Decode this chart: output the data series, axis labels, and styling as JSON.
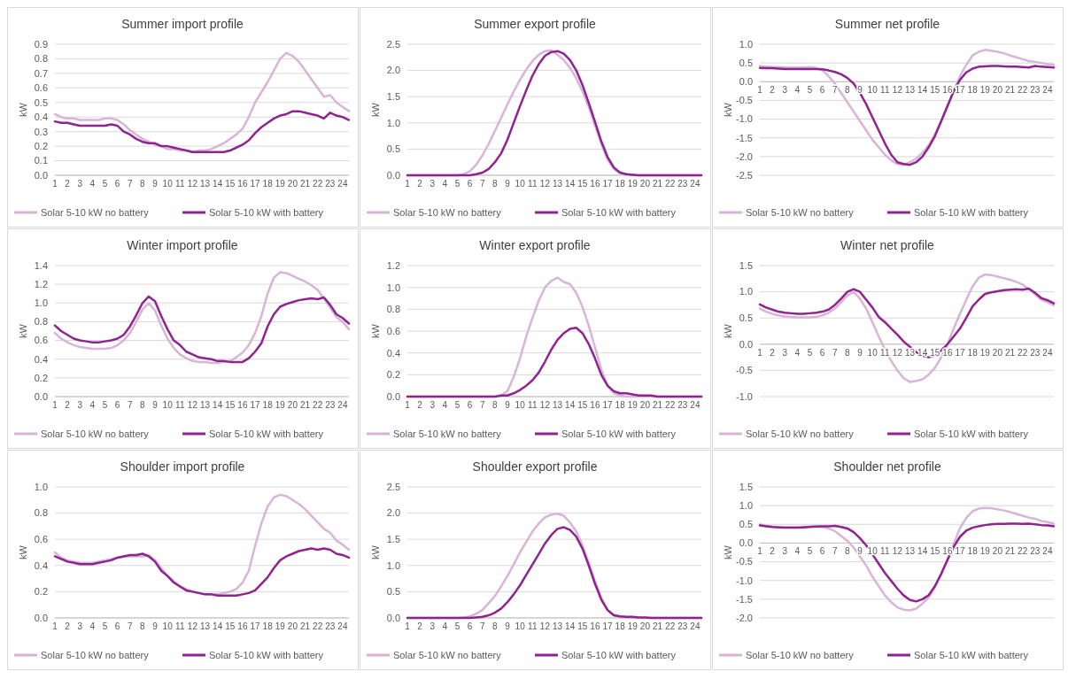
{
  "chart_data": [
    {
      "type": "line",
      "title": "Summer import profile",
      "ylabel": "kW",
      "grid": "y",
      "legend": "bottom",
      "x": [
        1,
        1.5,
        2,
        2.5,
        3,
        3.5,
        4,
        4.5,
        5,
        5.5,
        6,
        6.5,
        7,
        7.5,
        8,
        8.5,
        9,
        9.5,
        10,
        10.5,
        11,
        11.5,
        12,
        12.5,
        13,
        13.5,
        14,
        14.5,
        15,
        15.5,
        16,
        16.5,
        17,
        17.5,
        18,
        18.5,
        19,
        19.5,
        20,
        20.5,
        21,
        21.5,
        22,
        22.5,
        23,
        23.5,
        24,
        24.5
      ],
      "xlim": [
        1,
        24.5
      ],
      "xticks": [
        1,
        2,
        3,
        4,
        5,
        6,
        7,
        8,
        9,
        10,
        11,
        12,
        13,
        14,
        15,
        16,
        17,
        18,
        19,
        20,
        21,
        22,
        23,
        24
      ],
      "ylim": [
        0,
        0.9
      ],
      "yticks": [
        {
          "value": 0,
          "label": "0.0"
        },
        {
          "value": 0.1,
          "label": "0.1"
        },
        {
          "value": 0.2,
          "label": "0.2"
        },
        {
          "value": 0.3,
          "label": "0.3"
        },
        {
          "value": 0.4,
          "label": "0.4"
        },
        {
          "value": 0.5,
          "label": "0.5"
        },
        {
          "value": 0.6,
          "label": "0.6"
        },
        {
          "value": 0.7,
          "label": "0.7"
        },
        {
          "value": 0.8,
          "label": "0.8"
        },
        {
          "value": 0.9,
          "label": "0.9"
        }
      ],
      "series": [
        {
          "name": "Solar 5-10 kW no battery",
          "color": "#d8b4d9",
          "values": [
            0.42,
            0.4,
            0.39,
            0.39,
            0.38,
            0.38,
            0.38,
            0.38,
            0.39,
            0.39,
            0.38,
            0.35,
            0.31,
            0.28,
            0.25,
            0.23,
            0.21,
            0.2,
            0.18,
            0.18,
            0.17,
            0.17,
            0.16,
            0.17,
            0.17,
            0.18,
            0.2,
            0.22,
            0.25,
            0.28,
            0.32,
            0.4,
            0.5,
            0.57,
            0.64,
            0.72,
            0.8,
            0.84,
            0.82,
            0.78,
            0.72,
            0.66,
            0.6,
            0.54,
            0.55,
            0.5,
            0.47,
            0.44
          ]
        },
        {
          "name": "Solar 5-10 kW with battery",
          "color": "#8f2490",
          "values": [
            0.37,
            0.36,
            0.36,
            0.35,
            0.34,
            0.34,
            0.34,
            0.34,
            0.34,
            0.35,
            0.34,
            0.3,
            0.28,
            0.25,
            0.23,
            0.22,
            0.22,
            0.2,
            0.2,
            0.19,
            0.18,
            0.17,
            0.16,
            0.16,
            0.16,
            0.16,
            0.16,
            0.16,
            0.17,
            0.19,
            0.21,
            0.24,
            0.29,
            0.33,
            0.36,
            0.39,
            0.41,
            0.42,
            0.44,
            0.44,
            0.43,
            0.42,
            0.41,
            0.39,
            0.43,
            0.41,
            0.4,
            0.38
          ]
        }
      ]
    },
    {
      "type": "line",
      "title": "Summer export profile",
      "ylabel": "kW",
      "grid": "y",
      "legend": "bottom",
      "x": [
        1,
        1.5,
        2,
        2.5,
        3,
        3.5,
        4,
        4.5,
        5,
        5.5,
        6,
        6.5,
        7,
        7.5,
        8,
        8.5,
        9,
        9.5,
        10,
        10.5,
        11,
        11.5,
        12,
        12.5,
        13,
        13.5,
        14,
        14.5,
        15,
        15.5,
        16,
        16.5,
        17,
        17.5,
        18,
        18.5,
        19,
        19.5,
        20,
        20.5,
        21,
        21.5,
        22,
        22.5,
        23,
        23.5,
        24,
        24.5
      ],
      "xlim": [
        1,
        24.5
      ],
      "xticks": [
        1,
        2,
        3,
        4,
        5,
        6,
        7,
        8,
        9,
        10,
        11,
        12,
        13,
        14,
        15,
        16,
        17,
        18,
        19,
        20,
        21,
        22,
        23,
        24
      ],
      "ylim": [
        0,
        2.5
      ],
      "yticks": [
        {
          "value": 0,
          "label": "0.0"
        },
        {
          "value": 0.5,
          "label": "0.5"
        },
        {
          "value": 1,
          "label": "1.0"
        },
        {
          "value": 1.5,
          "label": "1.5"
        },
        {
          "value": 2,
          "label": "2.0"
        },
        {
          "value": 2.5,
          "label": "2.5"
        }
      ],
      "series": [
        {
          "name": "Solar 5-10 kW no battery",
          "color": "#d8b4d9",
          "values": [
            0,
            0,
            0,
            0,
            0,
            0,
            0,
            0,
            0,
            0.02,
            0.08,
            0.2,
            0.38,
            0.6,
            0.85,
            1.1,
            1.35,
            1.6,
            1.82,
            2.02,
            2.18,
            2.3,
            2.37,
            2.38,
            2.3,
            2.2,
            2.05,
            1.85,
            1.6,
            1.3,
            0.95,
            0.6,
            0.3,
            0.12,
            0.04,
            0.02,
            0.01,
            0,
            0,
            0,
            0,
            0,
            0,
            0,
            0,
            0,
            0,
            0
          ]
        },
        {
          "name": "Solar 5-10 kW with battery",
          "color": "#8f2490",
          "values": [
            0,
            0,
            0,
            0,
            0,
            0,
            0,
            0,
            0,
            0,
            0,
            0.02,
            0.05,
            0.12,
            0.25,
            0.42,
            0.68,
            1.0,
            1.32,
            1.62,
            1.9,
            2.12,
            2.28,
            2.35,
            2.37,
            2.32,
            2.2,
            2.0,
            1.72,
            1.38,
            1.02,
            0.65,
            0.35,
            0.15,
            0.05,
            0.02,
            0.01,
            0,
            0,
            0,
            0,
            0,
            0,
            0,
            0,
            0,
            0,
            0
          ]
        }
      ]
    },
    {
      "type": "line",
      "title": "Summer net profile",
      "ylabel": "kW",
      "grid": "y",
      "legend": "bottom",
      "x": [
        1,
        1.5,
        2,
        2.5,
        3,
        3.5,
        4,
        4.5,
        5,
        5.5,
        6,
        6.5,
        7,
        7.5,
        8,
        8.5,
        9,
        9.5,
        10,
        10.5,
        11,
        11.5,
        12,
        12.5,
        13,
        13.5,
        14,
        14.5,
        15,
        15.5,
        16,
        16.5,
        17,
        17.5,
        18,
        18.5,
        19,
        19.5,
        20,
        20.5,
        21,
        21.5,
        22,
        22.5,
        23,
        23.5,
        24,
        24.5
      ],
      "xlim": [
        1,
        24.5
      ],
      "xticks": [
        1,
        2,
        3,
        4,
        5,
        6,
        7,
        8,
        9,
        10,
        11,
        12,
        13,
        14,
        15,
        16,
        17,
        18,
        19,
        20,
        21,
        22,
        23,
        24
      ],
      "ylim": [
        -2.5,
        1
      ],
      "yticks": [
        {
          "value": -2.5,
          "label": "-2.5"
        },
        {
          "value": -2,
          "label": "-2.0"
        },
        {
          "value": -1.5,
          "label": "-1.5"
        },
        {
          "value": -1,
          "label": "-1.0"
        },
        {
          "value": -0.5,
          "label": "-0.5"
        },
        {
          "value": 0,
          "label": "0.0"
        },
        {
          "value": 0.5,
          "label": "0.5"
        },
        {
          "value": 1,
          "label": "1.0"
        }
      ],
      "series": [
        {
          "name": "Solar 5-10 kW no battery",
          "color": "#d8b4d9",
          "values": [
            0.42,
            0.4,
            0.39,
            0.39,
            0.38,
            0.38,
            0.38,
            0.38,
            0.39,
            0.37,
            0.3,
            0.15,
            -0.05,
            -0.3,
            -0.55,
            -0.8,
            -1.05,
            -1.3,
            -1.55,
            -1.75,
            -1.95,
            -2.1,
            -2.2,
            -2.22,
            -2.15,
            -2.05,
            -1.9,
            -1.7,
            -1.4,
            -1.05,
            -0.65,
            -0.25,
            0.15,
            0.45,
            0.7,
            0.8,
            0.85,
            0.83,
            0.8,
            0.76,
            0.7,
            0.65,
            0.6,
            0.55,
            0.53,
            0.5,
            0.47,
            0.45
          ]
        },
        {
          "name": "Solar 5-10 kW with battery",
          "color": "#8f2490",
          "values": [
            0.37,
            0.36,
            0.36,
            0.35,
            0.34,
            0.34,
            0.34,
            0.34,
            0.34,
            0.34,
            0.33,
            0.3,
            0.26,
            0.2,
            0.1,
            -0.05,
            -0.3,
            -0.6,
            -0.95,
            -1.3,
            -1.65,
            -1.95,
            -2.15,
            -2.2,
            -2.22,
            -2.15,
            -2,
            -1.75,
            -1.45,
            -1.05,
            -0.65,
            -0.25,
            0.05,
            0.25,
            0.35,
            0.4,
            0.41,
            0.42,
            0.42,
            0.41,
            0.4,
            0.4,
            0.39,
            0.38,
            0.42,
            0.4,
            0.39,
            0.38
          ]
        }
      ]
    },
    {
      "type": "line",
      "title": "Winter import profile",
      "ylabel": "kW",
      "grid": "y",
      "legend": "bottom",
      "x": [
        1,
        1.5,
        2,
        2.5,
        3,
        3.5,
        4,
        4.5,
        5,
        5.5,
        6,
        6.5,
        7,
        7.5,
        8,
        8.5,
        9,
        9.5,
        10,
        10.5,
        11,
        11.5,
        12,
        12.5,
        13,
        13.5,
        14,
        14.5,
        15,
        15.5,
        16,
        16.5,
        17,
        17.5,
        18,
        18.5,
        19,
        19.5,
        20,
        20.5,
        21,
        21.5,
        22,
        22.5,
        23,
        23.5,
        24,
        24.5
      ],
      "xlim": [
        1,
        24.5
      ],
      "xticks": [
        1,
        2,
        3,
        4,
        5,
        6,
        7,
        8,
        9,
        10,
        11,
        12,
        13,
        14,
        15,
        16,
        17,
        18,
        19,
        20,
        21,
        22,
        23,
        24
      ],
      "ylim": [
        0,
        1.4
      ],
      "yticks": [
        {
          "value": 0,
          "label": "0.0"
        },
        {
          "value": 0.2,
          "label": "0.2"
        },
        {
          "value": 0.4,
          "label": "0.4"
        },
        {
          "value": 0.6,
          "label": "0.6"
        },
        {
          "value": 0.8,
          "label": "0.8"
        },
        {
          "value": 1,
          "label": "1.0"
        },
        {
          "value": 1.2,
          "label": "1.2"
        },
        {
          "value": 1.4,
          "label": "1.4"
        }
      ],
      "series": [
        {
          "name": "Solar 5-10 kW no battery",
          "color": "#d8b4d9",
          "values": [
            0.68,
            0.62,
            0.58,
            0.55,
            0.53,
            0.52,
            0.51,
            0.51,
            0.51,
            0.52,
            0.55,
            0.6,
            0.68,
            0.8,
            0.93,
            1.0,
            0.92,
            0.76,
            0.62,
            0.52,
            0.45,
            0.41,
            0.38,
            0.37,
            0.37,
            0.36,
            0.36,
            0.37,
            0.38,
            0.42,
            0.47,
            0.55,
            0.68,
            0.86,
            1.1,
            1.27,
            1.33,
            1.32,
            1.29,
            1.26,
            1.23,
            1.19,
            1.14,
            1.05,
            0.95,
            0.85,
            0.8,
            0.72
          ]
        },
        {
          "name": "Solar 5-10 kW with battery",
          "color": "#8f2490",
          "values": [
            0.76,
            0.7,
            0.66,
            0.62,
            0.6,
            0.59,
            0.58,
            0.58,
            0.59,
            0.6,
            0.62,
            0.66,
            0.75,
            0.87,
            1.0,
            1.07,
            1.02,
            0.86,
            0.72,
            0.6,
            0.55,
            0.48,
            0.45,
            0.42,
            0.41,
            0.4,
            0.38,
            0.38,
            0.37,
            0.37,
            0.37,
            0.41,
            0.48,
            0.57,
            0.75,
            0.88,
            0.96,
            0.99,
            1.01,
            1.03,
            1.04,
            1.05,
            1.04,
            1.06,
            0.98,
            0.88,
            0.84,
            0.78
          ]
        }
      ]
    },
    {
      "type": "line",
      "title": "Winter export profile",
      "ylabel": "kW",
      "grid": "y",
      "legend": "bottom",
      "x": [
        1,
        1.5,
        2,
        2.5,
        3,
        3.5,
        4,
        4.5,
        5,
        5.5,
        6,
        6.5,
        7,
        7.5,
        8,
        8.5,
        9,
        9.5,
        10,
        10.5,
        11,
        11.5,
        12,
        12.5,
        13,
        13.5,
        14,
        14.5,
        15,
        15.5,
        16,
        16.5,
        17,
        17.5,
        18,
        18.5,
        19,
        19.5,
        20,
        20.5,
        21,
        21.5,
        22,
        22.5,
        23,
        23.5,
        24,
        24.5
      ],
      "xlim": [
        1,
        24.5
      ],
      "xticks": [
        1,
        2,
        3,
        4,
        5,
        6,
        7,
        8,
        9,
        10,
        11,
        12,
        13,
        14,
        15,
        16,
        17,
        18,
        19,
        20,
        21,
        22,
        23,
        24
      ],
      "ylim": [
        0,
        1.2
      ],
      "yticks": [
        {
          "value": 0,
          "label": "0.0"
        },
        {
          "value": 0.2,
          "label": "0.2"
        },
        {
          "value": 0.4,
          "label": "0.4"
        },
        {
          "value": 0.6,
          "label": "0.6"
        },
        {
          "value": 0.8,
          "label": "0.8"
        },
        {
          "value": 1,
          "label": "1.0"
        },
        {
          "value": 1.2,
          "label": "1.2"
        }
      ],
      "series": [
        {
          "name": "Solar 5-10 kW no battery",
          "color": "#d8b4d9",
          "values": [
            0,
            0,
            0,
            0,
            0,
            0,
            0,
            0,
            0,
            0,
            0,
            0,
            0,
            0,
            0,
            0.01,
            0.05,
            0.18,
            0.35,
            0.55,
            0.72,
            0.88,
            1.0,
            1.06,
            1.09,
            1.05,
            1.03,
            0.95,
            0.82,
            0.65,
            0.45,
            0.25,
            0.1,
            0.03,
            0.01,
            0,
            0,
            0,
            0,
            0,
            0,
            0,
            0,
            0,
            0,
            0,
            0,
            0
          ]
        },
        {
          "name": "Solar 5-10 kW with battery",
          "color": "#8f2490",
          "values": [
            0,
            0,
            0,
            0,
            0,
            0,
            0,
            0,
            0,
            0,
            0,
            0,
            0,
            0,
            0,
            0.01,
            0.01,
            0.03,
            0.06,
            0.1,
            0.15,
            0.22,
            0.32,
            0.43,
            0.52,
            0.58,
            0.62,
            0.63,
            0.58,
            0.48,
            0.35,
            0.2,
            0.1,
            0.05,
            0.03,
            0.03,
            0.02,
            0.01,
            0.01,
            0.01,
            0,
            0,
            0,
            0,
            0,
            0,
            0,
            0
          ]
        }
      ]
    },
    {
      "type": "line",
      "title": "Winter net profile",
      "ylabel": "kW",
      "grid": "y",
      "legend": "bottom",
      "x": [
        1,
        1.5,
        2,
        2.5,
        3,
        3.5,
        4,
        4.5,
        5,
        5.5,
        6,
        6.5,
        7,
        7.5,
        8,
        8.5,
        9,
        9.5,
        10,
        10.5,
        11,
        11.5,
        12,
        12.5,
        13,
        13.5,
        14,
        14.5,
        15,
        15.5,
        16,
        16.5,
        17,
        17.5,
        18,
        18.5,
        19,
        19.5,
        20,
        20.5,
        21,
        21.5,
        22,
        22.5,
        23,
        23.5,
        24,
        24.5
      ],
      "xlim": [
        1,
        24.5
      ],
      "xticks": [
        1,
        2,
        3,
        4,
        5,
        6,
        7,
        8,
        9,
        10,
        11,
        12,
        13,
        14,
        15,
        16,
        17,
        18,
        19,
        20,
        21,
        22,
        23,
        24
      ],
      "ylim": [
        -1,
        1.5
      ],
      "yticks": [
        {
          "value": -1,
          "label": "-1.0"
        },
        {
          "value": -0.5,
          "label": "-0.5"
        },
        {
          "value": 0,
          "label": "0.0"
        },
        {
          "value": 0.5,
          "label": "0.5"
        },
        {
          "value": 1,
          "label": "1.0"
        },
        {
          "value": 1.5,
          "label": "1.5"
        }
      ],
      "series": [
        {
          "name": "Solar 5-10 kW no battery",
          "color": "#d8b4d9",
          "values": [
            0.68,
            0.62,
            0.58,
            0.55,
            0.53,
            0.52,
            0.51,
            0.51,
            0.51,
            0.52,
            0.55,
            0.6,
            0.68,
            0.8,
            0.93,
            1.0,
            0.87,
            0.68,
            0.42,
            0.15,
            -0.1,
            -0.32,
            -0.5,
            -0.65,
            -0.72,
            -0.7,
            -0.67,
            -0.58,
            -0.45,
            -0.25,
            0,
            0.3,
            0.58,
            0.85,
            1.1,
            1.27,
            1.33,
            1.32,
            1.29,
            1.26,
            1.23,
            1.19,
            1.14,
            1.05,
            0.95,
            0.85,
            0.8,
            0.74
          ]
        },
        {
          "name": "Solar 5-10 kW with battery",
          "color": "#8f2490",
          "values": [
            0.76,
            0.7,
            0.66,
            0.62,
            0.6,
            0.59,
            0.58,
            0.58,
            0.59,
            0.6,
            0.62,
            0.66,
            0.75,
            0.87,
            1.0,
            1.05,
            1.0,
            0.85,
            0.7,
            0.52,
            0.42,
            0.3,
            0.18,
            0.05,
            -0.05,
            -0.15,
            -0.22,
            -0.25,
            -0.22,
            -0.12,
            0,
            0.15,
            0.3,
            0.5,
            0.72,
            0.85,
            0.96,
            0.99,
            1.01,
            1.03,
            1.04,
            1.05,
            1.04,
            1.06,
            0.98,
            0.88,
            0.84,
            0.78
          ]
        }
      ]
    },
    {
      "type": "line",
      "title": "Shoulder import profile",
      "ylabel": "kW",
      "grid": "y",
      "legend": "bottom",
      "x": [
        1,
        1.5,
        2,
        2.5,
        3,
        3.5,
        4,
        4.5,
        5,
        5.5,
        6,
        6.5,
        7,
        7.5,
        8,
        8.5,
        9,
        9.5,
        10,
        10.5,
        11,
        11.5,
        12,
        12.5,
        13,
        13.5,
        14,
        14.5,
        15,
        15.5,
        16,
        16.5,
        17,
        17.5,
        18,
        18.5,
        19,
        19.5,
        20,
        20.5,
        21,
        21.5,
        22,
        22.5,
        23,
        23.5,
        24,
        24.5
      ],
      "xlim": [
        1,
        24.5
      ],
      "xticks": [
        1,
        2,
        3,
        4,
        5,
        6,
        7,
        8,
        9,
        10,
        11,
        12,
        13,
        14,
        15,
        16,
        17,
        18,
        19,
        20,
        21,
        22,
        23,
        24
      ],
      "ylim": [
        0,
        1
      ],
      "yticks": [
        {
          "value": 0,
          "label": "0.0"
        },
        {
          "value": 0.2,
          "label": "0.2"
        },
        {
          "value": 0.4,
          "label": "0.4"
        },
        {
          "value": 0.6,
          "label": "0.6"
        },
        {
          "value": 0.8,
          "label": "0.8"
        },
        {
          "value": 1,
          "label": "1.0"
        }
      ],
      "series": [
        {
          "name": "Solar 5-10 kW no battery",
          "color": "#d8b4d9",
          "values": [
            0.5,
            0.46,
            0.44,
            0.43,
            0.42,
            0.42,
            0.42,
            0.43,
            0.44,
            0.45,
            0.46,
            0.47,
            0.47,
            0.47,
            0.47,
            0.48,
            0.44,
            0.38,
            0.32,
            0.28,
            0.24,
            0.22,
            0.2,
            0.19,
            0.18,
            0.18,
            0.18,
            0.19,
            0.2,
            0.22,
            0.27,
            0.36,
            0.55,
            0.72,
            0.85,
            0.92,
            0.94,
            0.93,
            0.9,
            0.87,
            0.83,
            0.78,
            0.73,
            0.68,
            0.65,
            0.59,
            0.56,
            0.52
          ]
        },
        {
          "name": "Solar 5-10 kW with battery",
          "color": "#8f2490",
          "values": [
            0.47,
            0.45,
            0.43,
            0.42,
            0.41,
            0.41,
            0.41,
            0.42,
            0.43,
            0.44,
            0.46,
            0.47,
            0.48,
            0.48,
            0.49,
            0.47,
            0.43,
            0.36,
            0.32,
            0.27,
            0.24,
            0.21,
            0.2,
            0.19,
            0.18,
            0.18,
            0.17,
            0.17,
            0.17,
            0.17,
            0.18,
            0.19,
            0.21,
            0.26,
            0.31,
            0.38,
            0.44,
            0.47,
            0.49,
            0.51,
            0.52,
            0.53,
            0.52,
            0.53,
            0.52,
            0.49,
            0.48,
            0.46
          ]
        }
      ]
    },
    {
      "type": "line",
      "title": "Shoulder export profile",
      "ylabel": "kW",
      "grid": "y",
      "legend": "bottom",
      "x": [
        1,
        1.5,
        2,
        2.5,
        3,
        3.5,
        4,
        4.5,
        5,
        5.5,
        6,
        6.5,
        7,
        7.5,
        8,
        8.5,
        9,
        9.5,
        10,
        10.5,
        11,
        11.5,
        12,
        12.5,
        13,
        13.5,
        14,
        14.5,
        15,
        15.5,
        16,
        16.5,
        17,
        17.5,
        18,
        18.5,
        19,
        19.5,
        20,
        20.5,
        21,
        21.5,
        22,
        22.5,
        23,
        23.5,
        24,
        24.5
      ],
      "xlim": [
        1,
        24.5
      ],
      "xticks": [
        1,
        2,
        3,
        4,
        5,
        6,
        7,
        8,
        9,
        10,
        11,
        12,
        13,
        14,
        15,
        16,
        17,
        18,
        19,
        20,
        21,
        22,
        23,
        24
      ],
      "ylim": [
        0,
        2.5
      ],
      "yticks": [
        {
          "value": 0,
          "label": "0.0"
        },
        {
          "value": 0.5,
          "label": "0.5"
        },
        {
          "value": 1,
          "label": "1.0"
        },
        {
          "value": 1.5,
          "label": "1.5"
        },
        {
          "value": 2,
          "label": "2.0"
        },
        {
          "value": 2.5,
          "label": "2.5"
        }
      ],
      "series": [
        {
          "name": "Solar 5-10 kW no battery",
          "color": "#d8b4d9",
          "values": [
            0,
            0,
            0,
            0,
            0,
            0,
            0,
            0,
            0,
            0.01,
            0.03,
            0.08,
            0.15,
            0.28,
            0.42,
            0.6,
            0.8,
            1.02,
            1.25,
            1.45,
            1.65,
            1.8,
            1.92,
            1.97,
            1.99,
            1.95,
            1.82,
            1.65,
            1.38,
            1.05,
            0.7,
            0.38,
            0.15,
            0.05,
            0.02,
            0.01,
            0,
            0,
            0,
            0,
            0,
            0,
            0,
            0,
            0,
            0,
            0,
            0
          ]
        },
        {
          "name": "Solar 5-10 kW with battery",
          "color": "#8f2490",
          "values": [
            0,
            0,
            0,
            0,
            0,
            0,
            0,
            0,
            0,
            0,
            0,
            0.01,
            0.02,
            0.05,
            0.1,
            0.18,
            0.3,
            0.45,
            0.62,
            0.82,
            1.02,
            1.22,
            1.42,
            1.58,
            1.7,
            1.73,
            1.68,
            1.55,
            1.32,
            1.0,
            0.65,
            0.35,
            0.15,
            0.05,
            0.03,
            0.02,
            0.02,
            0.01,
            0.01,
            0,
            0,
            0,
            0,
            0,
            0,
            0,
            0,
            0
          ]
        }
      ]
    },
    {
      "type": "line",
      "title": "Shoulder net profile",
      "ylabel": "kW",
      "grid": "y",
      "legend": "bottom",
      "x": [
        1,
        1.5,
        2,
        2.5,
        3,
        3.5,
        4,
        4.5,
        5,
        5.5,
        6,
        6.5,
        7,
        7.5,
        8,
        8.5,
        9,
        9.5,
        10,
        10.5,
        11,
        11.5,
        12,
        12.5,
        13,
        13.5,
        14,
        14.5,
        15,
        15.5,
        16,
        16.5,
        17,
        17.5,
        18,
        18.5,
        19,
        19.5,
        20,
        20.5,
        21,
        21.5,
        22,
        22.5,
        23,
        23.5,
        24,
        24.5
      ],
      "xlim": [
        1,
        24.5
      ],
      "xticks": [
        1,
        2,
        3,
        4,
        5,
        6,
        7,
        8,
        9,
        10,
        11,
        12,
        13,
        14,
        15,
        16,
        17,
        18,
        19,
        20,
        21,
        22,
        23,
        24
      ],
      "ylim": [
        -2,
        1.5
      ],
      "yticks": [
        {
          "value": -2,
          "label": "-2.0"
        },
        {
          "value": -1.5,
          "label": "-1.5"
        },
        {
          "value": -1,
          "label": "-1.0"
        },
        {
          "value": -0.5,
          "label": "-0.5"
        },
        {
          "value": 0,
          "label": "0.0"
        },
        {
          "value": 0.5,
          "label": "0.5"
        },
        {
          "value": 1,
          "label": "1.0"
        },
        {
          "value": 1.5,
          "label": "1.5"
        }
      ],
      "series": [
        {
          "name": "Solar 5-10 kW no battery",
          "color": "#d8b4d9",
          "values": [
            0.5,
            0.46,
            0.44,
            0.43,
            0.42,
            0.42,
            0.42,
            0.43,
            0.44,
            0.44,
            0.43,
            0.39,
            0.32,
            0.19,
            0.06,
            -0.12,
            -0.36,
            -0.6,
            -0.9,
            -1.15,
            -1.4,
            -1.58,
            -1.72,
            -1.78,
            -1.8,
            -1.75,
            -1.62,
            -1.45,
            -1.18,
            -0.83,
            -0.43,
            -0.02,
            0.4,
            0.67,
            0.85,
            0.92,
            0.94,
            0.93,
            0.9,
            0.87,
            0.83,
            0.78,
            0.73,
            0.68,
            0.65,
            0.59,
            0.56,
            0.52
          ]
        },
        {
          "name": "Solar 5-10 kW with battery",
          "color": "#8f2490",
          "values": [
            0.47,
            0.45,
            0.43,
            0.42,
            0.41,
            0.41,
            0.41,
            0.42,
            0.43,
            0.44,
            0.45,
            0.45,
            0.46,
            0.43,
            0.39,
            0.29,
            0.13,
            -0.06,
            -0.3,
            -0.55,
            -0.8,
            -1.01,
            -1.22,
            -1.4,
            -1.52,
            -1.56,
            -1.5,
            -1.39,
            -1.15,
            -0.82,
            -0.45,
            -0.1,
            0.17,
            0.33,
            0.41,
            0.45,
            0.48,
            0.5,
            0.51,
            0.51,
            0.52,
            0.52,
            0.51,
            0.52,
            0.5,
            0.48,
            0.47,
            0.45
          ]
        }
      ]
    }
  ]
}
